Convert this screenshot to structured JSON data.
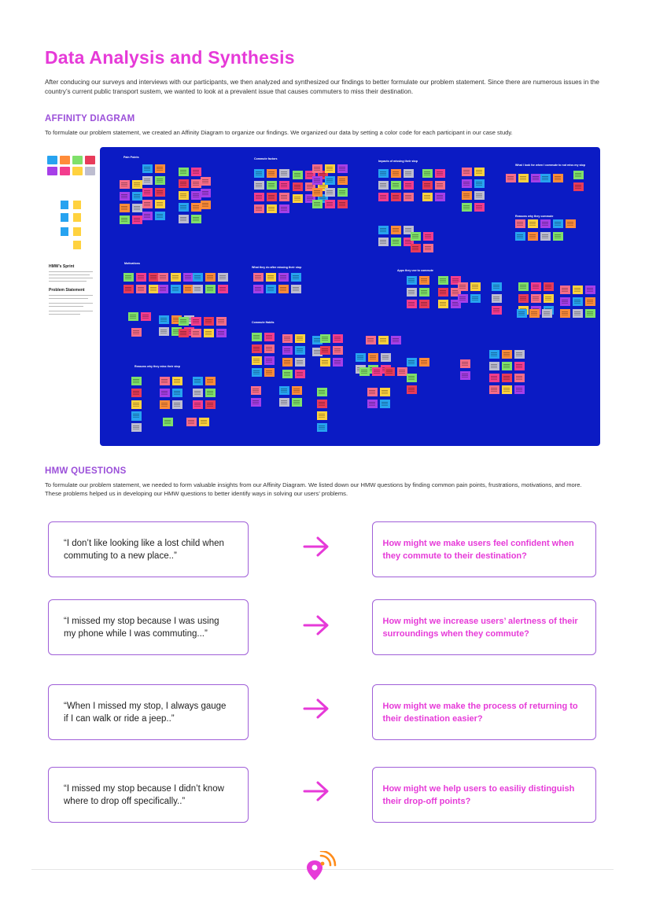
{
  "title": "Data Analysis and Synthesis",
  "intro": "After conducing our surveys and interviews with our participants, we then analyzed and synthesized our findings to better formulate our problem statement. Since there are numerous issues in the country’s current public transport sustem, we wanted to look at a prevalent issue that causes commuters to miss their destination.",
  "affinity": {
    "heading": "AFFINITY DIAGRAM",
    "text": "To formulate our problem statement, we created an Affinity Diagram to organize our findings. We organized our data by setting a color code for each participant in our case study.",
    "mini_board": {
      "hmw_sprint": "HMW's Sprint",
      "problem_statement": "Problem Statement"
    },
    "board_labels": [
      "Pain Points",
      "Commute factors",
      "Impacts of missing their stop",
      "What I look for when I commute to not miss my stop",
      "Reasons why they commute",
      "Motivations",
      "What they do after missing their stop",
      "Apps they use to commute",
      "Commute Habits",
      "Reasons why they miss their stop"
    ],
    "colors": {
      "board": "#0b1bc4",
      "notes": [
        "#f76d8a",
        "#ffd23f",
        "#a63fe8",
        "#27a3f0",
        "#ff8c3a",
        "#bdbdd0",
        "#7fe06a",
        "#f33d8e",
        "#e83b5a"
      ]
    }
  },
  "hmw": {
    "heading": "HMW QUESTIONS",
    "text": "To formulate our problem statement, we needed to form valuable insights from our Affinity Diagram. We listed down our HMW questions by finding common pain points, frustrations, motivations, and more. These problems helped us in developing our HMW questions to better identify ways in solving our users’ problems.",
    "rows": [
      {
        "quote": "“I don’t like looking like a lost child when commuting to a new place..”",
        "question": "How might we make users feel confident when they commute to their destination?"
      },
      {
        "quote": "“I missed my stop because I was using my phone while I was commuting...”",
        "question": "How might we increase users’ alertness of their surroundings when they commute?"
      },
      {
        "quote": "“When I missed my stop, I always gauge if I can walk or ride a jeep..”",
        "question": "How might we make the process of returning to their destination easier?"
      },
      {
        "quote": "“I missed my stop because I didn’t know where to drop off specifically..”",
        "question": "How might we help users to easiliy distinguish their drop-off points?"
      }
    ],
    "accent": "#e63ad8",
    "border": "#a05fd8"
  },
  "footer": {
    "logo_icon": "location-signal-icon"
  }
}
